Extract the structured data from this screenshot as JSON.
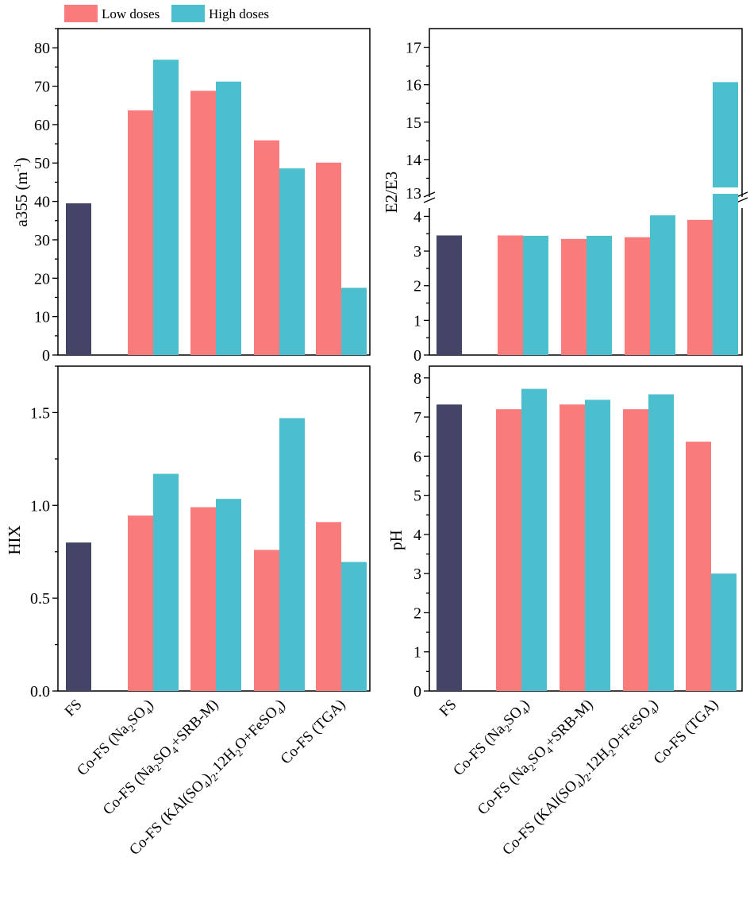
{
  "legend": {
    "items": [
      {
        "label": "Low doses",
        "color": "#f97b7b"
      },
      {
        "label": "High doses",
        "color": "#4bbfcd"
      }
    ],
    "placement": "top-left"
  },
  "colors": {
    "fs": "#444466",
    "low": "#f97b7b",
    "high": "#4bbfcd"
  },
  "chart_data": [
    {
      "type": "bar",
      "panel": "top-left",
      "categories": [
        "FS",
        "Co-FS (Na2SO4)",
        "Co-FS (Na2SO4+SRB-M)",
        "Co-FS (KAl(SO4)2.12H2O+FeSO4)",
        "Co-FS (TGA)"
      ],
      "series": [
        {
          "name": "FS",
          "values": [
            39.5,
            null,
            null,
            null,
            null
          ]
        },
        {
          "name": "Low doses",
          "values": [
            null,
            63.7,
            68.8,
            55.9,
            50.1
          ]
        },
        {
          "name": "High doses",
          "values": [
            null,
            76.9,
            71.2,
            48.6,
            17.5
          ]
        }
      ],
      "ylabel": "a355 (m-1)",
      "ylim": [
        0,
        85
      ],
      "yticks": [
        "0",
        "10",
        "20",
        "30",
        "40",
        "50",
        "60",
        "70",
        "80"
      ]
    },
    {
      "type": "bar",
      "panel": "top-right",
      "categories": [
        "FS",
        "Co-FS (Na2SO4)",
        "Co-FS (Na2SO4+SRB-M)",
        "Co-FS (KAl(SO4)2.12H2O+FeSO4)",
        "Co-FS (TGA)"
      ],
      "series": [
        {
          "name": "FS",
          "values": [
            3.45,
            null,
            null,
            null,
            null
          ]
        },
        {
          "name": "Low doses",
          "values": [
            null,
            3.45,
            3.35,
            3.4,
            3.9
          ]
        },
        {
          "name": "High doses",
          "values": [
            null,
            3.44,
            3.44,
            4.03,
            16.07
          ]
        }
      ],
      "ylabel": "E2/E3",
      "axis_break": {
        "lower_range": [
          0,
          4.4
        ],
        "upper_range": [
          13,
          17.5
        ]
      },
      "yticks_lower": [
        "0",
        "1",
        "2",
        "3",
        "4"
      ],
      "yticks_upper": [
        "14",
        "15",
        "16",
        "17"
      ]
    },
    {
      "type": "bar",
      "panel": "bottom-left",
      "categories": [
        "FS",
        "Co-FS (Na2SO4)",
        "Co-FS (Na2SO4+SRB-M)",
        "Co-FS (KAl(SO4)2.12H2O+FeSO4)",
        "Co-FS (TGA)"
      ],
      "series": [
        {
          "name": "FS",
          "values": [
            0.8,
            null,
            null,
            null,
            null
          ]
        },
        {
          "name": "Low doses",
          "values": [
            null,
            0.945,
            0.99,
            0.76,
            0.91
          ]
        },
        {
          "name": "High doses",
          "values": [
            null,
            1.17,
            1.035,
            1.47,
            0.695
          ]
        }
      ],
      "ylabel": "HIX",
      "ylim": [
        0,
        1.75
      ],
      "yticks": [
        "0.0",
        "0.5",
        "1.0",
        "1.5"
      ]
    },
    {
      "type": "bar",
      "panel": "bottom-right",
      "categories": [
        "FS",
        "Co-FS (Na2SO4)",
        "Co-FS (Na2SO4+SRB-M)",
        "Co-FS (KAl(SO4)2.12H2O+FeSO4)",
        "Co-FS (TGA)"
      ],
      "series": [
        {
          "name": "FS",
          "values": [
            7.32,
            null,
            null,
            null,
            null
          ]
        },
        {
          "name": "Low doses",
          "values": [
            null,
            7.2,
            7.32,
            7.2,
            6.37
          ]
        },
        {
          "name": "High doses",
          "values": [
            null,
            7.72,
            7.44,
            7.58,
            3.0
          ]
        }
      ],
      "ylabel": "pH",
      "ylim": [
        0,
        8.3
      ],
      "yticks": [
        "0",
        "1",
        "2",
        "3",
        "4",
        "5",
        "6",
        "7",
        "8"
      ]
    }
  ]
}
